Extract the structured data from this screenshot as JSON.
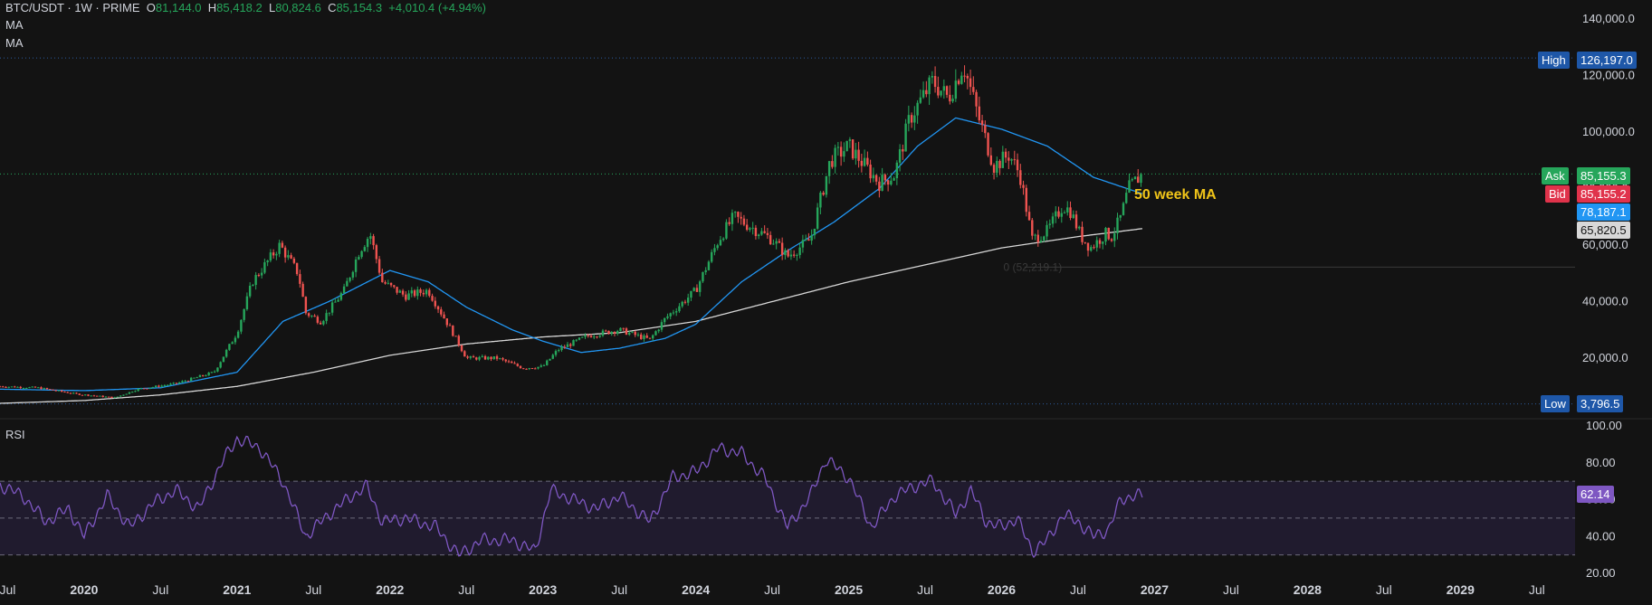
{
  "header": {
    "symbol": "BTC/USDT · 1W · PRIME",
    "open_label": "O",
    "open": "81,144.0",
    "high_label": "H",
    "high": "85,418.2",
    "low_label": "L",
    "low": "80,824.6",
    "close_label": "C",
    "close": "85,154.3",
    "change": "+4,010.4 (+4.94%)",
    "indicators": [
      "MA",
      "MA"
    ]
  },
  "rsi_panel": {
    "label": "RSI",
    "value": "62.14"
  },
  "price_tags": {
    "high": {
      "label": "High",
      "value": "126,197.0"
    },
    "ask": {
      "label": "Ask",
      "value": "85,155.3"
    },
    "bid": {
      "label": "Bid",
      "value": "85,155.2"
    },
    "ma50": {
      "value": "78,187.1"
    },
    "ma200": {
      "value": "65,820.5"
    },
    "low": {
      "label": "Low",
      "value": "3,796.5"
    }
  },
  "annotation": "50 week MA",
  "fib_label": "0 (52,219.1)",
  "colors": {
    "up": "#26a65b",
    "down": "#ef5350",
    "ma50": "#2196f3",
    "ma200": "#d8d8d8",
    "rsi": "#7e57c2",
    "high_tag": "#1e57a8",
    "ask": "#26a65b",
    "bid": "#e0334b",
    "annotation": "#f0c419"
  },
  "chart_data": [
    {
      "type": "candlestick",
      "title": "BTC/USDT · 1W · PRIME",
      "y_ticks": [
        "140,000.0",
        "120,000.0",
        "100,000.0",
        "80,000.0",
        "60,000.0",
        "40,000.0",
        "20,000.0"
      ],
      "y_tick_values": [
        140000,
        120000,
        100000,
        80000,
        60000,
        40000,
        20000
      ],
      "ylim": [
        0,
        150000
      ],
      "x_ticks": [
        "Jul",
        "2020",
        "Jul",
        "2021",
        "Jul",
        "2022",
        "Jul",
        "2023",
        "Jul",
        "2024",
        "Jul",
        "2025",
        "Jul",
        "2026",
        "Jul",
        "2027",
        "Jul",
        "2028",
        "Jul",
        "2029",
        "Jul"
      ],
      "x_tick_dates": [
        2019.5,
        2020,
        2020.5,
        2021,
        2021.5,
        2022,
        2022.5,
        2023,
        2023.5,
        2024,
        2024.5,
        2025,
        2025.5,
        2026,
        2026.5,
        2027,
        2027.5,
        2028,
        2028.5,
        2029,
        2029.5
      ],
      "xlim": [
        2019.45,
        2029.75
      ],
      "horizontal_lines": {
        "high": 126197.0,
        "current": 85155.3,
        "low": 3796.5,
        "fib_0": 52219.1
      },
      "price_keypoints": [
        [
          2019.45,
          10000
        ],
        [
          2019.7,
          9500
        ],
        [
          2019.95,
          7300
        ],
        [
          2020.2,
          6000
        ],
        [
          2020.35,
          9000
        ],
        [
          2020.6,
          11000
        ],
        [
          2020.85,
          15000
        ],
        [
          2021.0,
          29000
        ],
        [
          2021.1,
          47000
        ],
        [
          2021.28,
          60000
        ],
        [
          2021.4,
          50000
        ],
        [
          2021.45,
          36000
        ],
        [
          2021.55,
          33000
        ],
        [
          2021.7,
          44000
        ],
        [
          2021.8,
          58000
        ],
        [
          2021.87,
          64000
        ],
        [
          2021.95,
          47000
        ],
        [
          2022.1,
          42000
        ],
        [
          2022.25,
          44000
        ],
        [
          2022.4,
          30000
        ],
        [
          2022.5,
          20000
        ],
        [
          2022.7,
          20000
        ],
        [
          2022.87,
          16500
        ],
        [
          2023.0,
          17000
        ],
        [
          2023.1,
          23000
        ],
        [
          2023.3,
          28000
        ],
        [
          2023.5,
          30000
        ],
        [
          2023.7,
          26500
        ],
        [
          2023.8,
          34000
        ],
        [
          2024.0,
          44000
        ],
        [
          2024.15,
          62000
        ],
        [
          2024.25,
          70000
        ],
        [
          2024.5,
          62000
        ],
        [
          2024.6,
          56000
        ],
        [
          2024.75,
          62000
        ],
        [
          2024.88,
          90000
        ],
        [
          2025.0,
          95000
        ],
        [
          2025.2,
          82000
        ],
        [
          2025.3,
          85000
        ],
        [
          2025.4,
          105000
        ],
        [
          2025.55,
          118000
        ],
        [
          2025.65,
          112000
        ],
        [
          2025.75,
          124000
        ],
        [
          2025.85,
          105000
        ],
        [
          2025.95,
          88000
        ],
        [
          2026.05,
          92000
        ],
        [
          2026.12,
          85000
        ],
        [
          2026.2,
          62000
        ],
        [
          2026.3,
          65000
        ],
        [
          2026.4,
          74000
        ],
        [
          2026.45,
          72000
        ],
        [
          2026.52,
          63000
        ],
        [
          2026.58,
          59000
        ],
        [
          2026.68,
          64000
        ],
        [
          2026.72,
          63000
        ],
        [
          2026.78,
          70000
        ],
        [
          2026.83,
          80000
        ],
        [
          2026.88,
          83000
        ],
        [
          2026.92,
          85154
        ]
      ],
      "ma50_keypoints": [
        [
          2019.45,
          9000
        ],
        [
          2020.0,
          8500
        ],
        [
          2020.5,
          9500
        ],
        [
          2021.0,
          15000
        ],
        [
          2021.3,
          33000
        ],
        [
          2021.6,
          40000
        ],
        [
          2022.0,
          51000
        ],
        [
          2022.25,
          47000
        ],
        [
          2022.5,
          38000
        ],
        [
          2022.8,
          30000
        ],
        [
          2023.0,
          26000
        ],
        [
          2023.25,
          22000
        ],
        [
          2023.5,
          23500
        ],
        [
          2023.8,
          27000
        ],
        [
          2024.0,
          32000
        ],
        [
          2024.3,
          47000
        ],
        [
          2024.6,
          58000
        ],
        [
          2024.9,
          68000
        ],
        [
          2025.0,
          72000
        ],
        [
          2025.2,
          80000
        ],
        [
          2025.45,
          95000
        ],
        [
          2025.7,
          105000
        ],
        [
          2026.0,
          101000
        ],
        [
          2026.3,
          95000
        ],
        [
          2026.6,
          84000
        ],
        [
          2026.92,
          78187
        ]
      ],
      "ma200_keypoints": [
        [
          2019.45,
          4000
        ],
        [
          2020.0,
          5000
        ],
        [
          2020.5,
          7000
        ],
        [
          2021.0,
          10000
        ],
        [
          2021.5,
          15000
        ],
        [
          2022.0,
          21000
        ],
        [
          2022.5,
          25000
        ],
        [
          2023.0,
          27500
        ],
        [
          2023.5,
          29000
        ],
        [
          2024.0,
          33000
        ],
        [
          2024.5,
          40000
        ],
        [
          2025.0,
          47000
        ],
        [
          2025.5,
          53000
        ],
        [
          2026.0,
          59000
        ],
        [
          2026.5,
          63000
        ],
        [
          2026.92,
          65820
        ]
      ]
    },
    {
      "type": "line",
      "name": "RSI",
      "y_ticks": [
        "100.00",
        "80.00",
        "60.00",
        "40.00",
        "20.00"
      ],
      "y_tick_values": [
        100,
        80,
        60,
        40,
        20
      ],
      "ylim": [
        20,
        100
      ],
      "bands": [
        70,
        50,
        30
      ],
      "current": 62.14,
      "keypoints": [
        [
          2019.45,
          68
        ],
        [
          2019.6,
          62
        ],
        [
          2019.75,
          48
        ],
        [
          2019.9,
          55
        ],
        [
          2020.0,
          40
        ],
        [
          2020.15,
          62
        ],
        [
          2020.3,
          45
        ],
        [
          2020.45,
          58
        ],
        [
          2020.6,
          65
        ],
        [
          2020.75,
          55
        ],
        [
          2020.9,
          80
        ],
        [
          2021.0,
          93
        ],
        [
          2021.15,
          88
        ],
        [
          2021.3,
          70
        ],
        [
          2021.45,
          40
        ],
        [
          2021.6,
          52
        ],
        [
          2021.75,
          62
        ],
        [
          2021.85,
          67
        ],
        [
          2021.95,
          48
        ],
        [
          2022.1,
          50
        ],
        [
          2022.3,
          45
        ],
        [
          2022.45,
          30
        ],
        [
          2022.6,
          38
        ],
        [
          2022.8,
          38
        ],
        [
          2022.95,
          32
        ],
        [
          2023.05,
          65
        ],
        [
          2023.2,
          60
        ],
        [
          2023.35,
          55
        ],
        [
          2023.5,
          62
        ],
        [
          2023.7,
          48
        ],
        [
          2023.85,
          72
        ],
        [
          2024.0,
          75
        ],
        [
          2024.15,
          88
        ],
        [
          2024.3,
          85
        ],
        [
          2024.45,
          72
        ],
        [
          2024.6,
          45
        ],
        [
          2024.75,
          62
        ],
        [
          2024.85,
          82
        ],
        [
          2025.0,
          72
        ],
        [
          2025.15,
          45
        ],
        [
          2025.3,
          62
        ],
        [
          2025.45,
          68
        ],
        [
          2025.55,
          70
        ],
        [
          2025.7,
          52
        ],
        [
          2025.8,
          65
        ],
        [
          2025.9,
          48
        ],
        [
          2026.0,
          45
        ],
        [
          2026.1,
          50
        ],
        [
          2026.2,
          32
        ],
        [
          2026.3,
          38
        ],
        [
          2026.4,
          52
        ],
        [
          2026.5,
          48
        ],
        [
          2026.6,
          40
        ],
        [
          2026.7,
          44
        ],
        [
          2026.78,
          60
        ],
        [
          2026.85,
          62
        ],
        [
          2026.92,
          62.14
        ]
      ]
    }
  ]
}
